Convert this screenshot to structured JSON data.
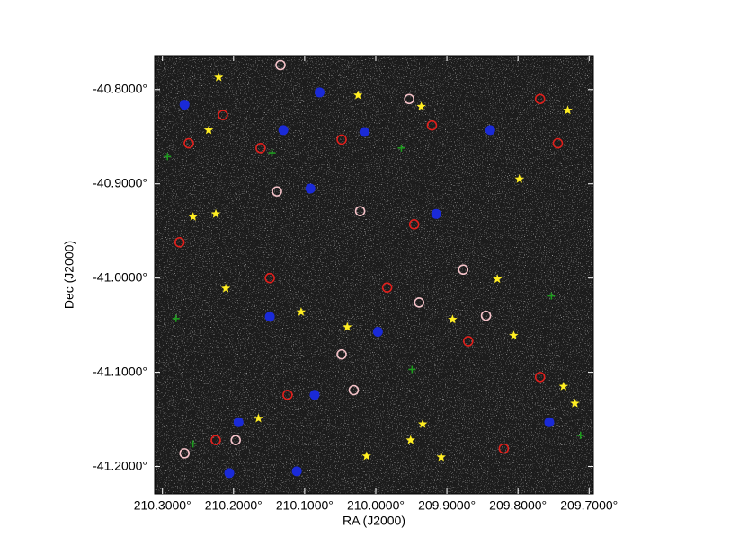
{
  "chart_data": {
    "type": "scatter",
    "x_label": "RA (J2000)",
    "y_label": "Dec (J2000)",
    "xlim": [
      210.311,
      209.694
    ],
    "ylim": [
      -41.229,
      -40.764
    ],
    "xticks": [
      {
        "value": 210.3,
        "label": "210.3000°"
      },
      {
        "value": 210.2,
        "label": "210.2000°"
      },
      {
        "value": 210.1,
        "label": "210.1000°"
      },
      {
        "value": 210.0,
        "label": "210.0000°"
      },
      {
        "value": 209.9,
        "label": "209.9000°"
      },
      {
        "value": 209.8,
        "label": "209.8000°"
      },
      {
        "value": 209.7,
        "label": "209.7000°"
      }
    ],
    "yticks": [
      {
        "value": -40.8,
        "label": "-40.8000°"
      },
      {
        "value": -40.9,
        "label": "-40.9000°"
      },
      {
        "value": -41.0,
        "label": "-41.0000°"
      },
      {
        "value": -41.1,
        "label": "-41.1000°"
      },
      {
        "value": -41.2,
        "label": "-41.2000°"
      }
    ],
    "series": [
      {
        "color": "#e0201c",
        "marker": "circle",
        "x": [
          210.215,
          210.263,
          210.162,
          210.048,
          209.921,
          209.769,
          209.744,
          210.276,
          210.149,
          209.984,
          209.87,
          209.769,
          210.124,
          210.225,
          209.82,
          209.946
        ],
        "values": [
          -40.827,
          -40.857,
          -40.862,
          -40.853,
          -40.838,
          -40.81,
          -40.857,
          -40.962,
          -41.0,
          -41.01,
          -41.067,
          -41.105,
          -41.124,
          -41.172,
          -41.181,
          -40.943
        ]
      },
      {
        "color": "#1a2ad8",
        "marker": "disk",
        "x": [
          210.269,
          210.079,
          210.13,
          210.016,
          209.839,
          210.092,
          209.915,
          210.149,
          209.997,
          210.193,
          210.086,
          209.756,
          210.111,
          210.206
        ],
        "values": [
          -40.816,
          -40.803,
          -40.843,
          -40.845,
          -40.843,
          -40.905,
          -40.932,
          -41.041,
          -41.057,
          -41.153,
          -41.124,
          -41.153,
          -41.205,
          -41.207
        ]
      },
      {
        "color": "#f4c2c8",
        "marker": "circle",
        "x": [
          210.134,
          209.953,
          210.139,
          210.022,
          209.877,
          209.845,
          210.048,
          210.031,
          210.197,
          210.269,
          209.939
        ],
        "values": [
          -40.774,
          -40.81,
          -40.908,
          -40.929,
          -40.991,
          -41.04,
          -41.081,
          -41.119,
          -41.172,
          -41.186,
          -41.026
        ]
      },
      {
        "color": "#1f9a1f",
        "marker": "plus",
        "x": [
          210.293,
          210.146,
          209.964,
          210.281,
          209.949,
          209.712,
          209.753,
          210.257
        ],
        "values": [
          -40.871,
          -40.867,
          -40.862,
          -41.043,
          -41.097,
          -41.167,
          -41.019,
          -41.176
        ]
      },
      {
        "color": "#ffee22",
        "marker": "star",
        "x": [
          210.221,
          210.025,
          209.936,
          209.73,
          210.235,
          209.798,
          210.257,
          210.225,
          210.211,
          210.105,
          209.829,
          209.892,
          210.04,
          209.806,
          209.72,
          209.736,
          210.165,
          209.951,
          209.934,
          210.013,
          209.908
        ],
        "values": [
          -40.787,
          -40.806,
          -40.818,
          -40.822,
          -40.843,
          -40.895,
          -40.935,
          -40.932,
          -41.011,
          -41.036,
          -41.001,
          -41.044,
          -41.052,
          -41.061,
          -41.133,
          -41.115,
          -41.149,
          -41.172,
          -41.155,
          -41.189,
          -41.19
        ]
      }
    ]
  }
}
